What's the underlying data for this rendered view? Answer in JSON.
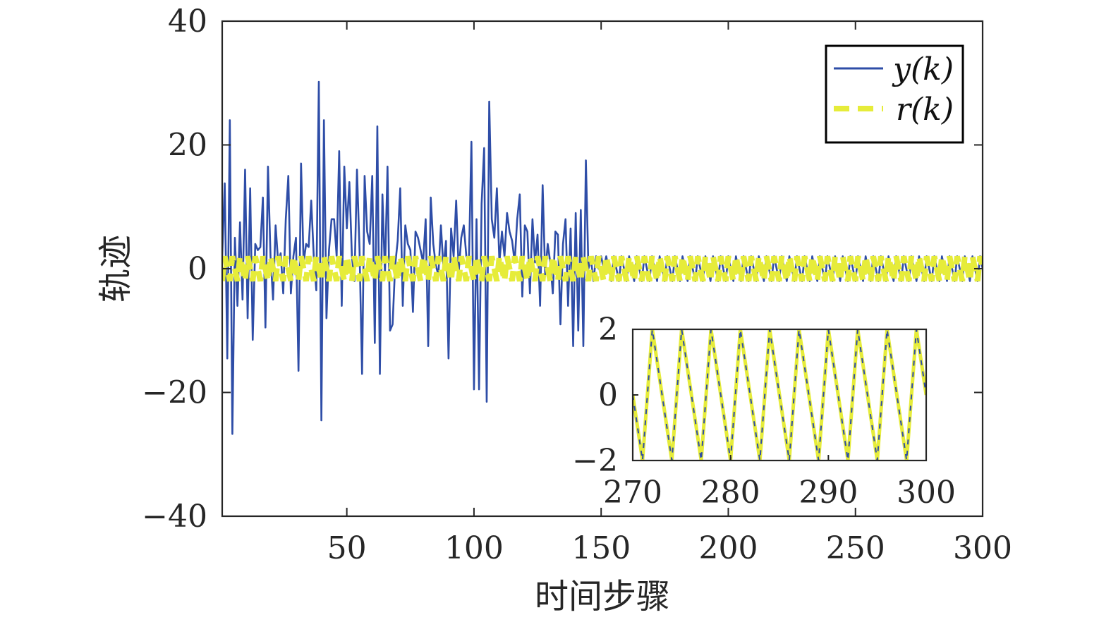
{
  "chart_data": {
    "type": "line",
    "xlabel": "时间步骤",
    "ylabel": "轨迹",
    "xlim": [
      1,
      300
    ],
    "ylim": [
      -40,
      40
    ],
    "xticks": [
      50,
      100,
      150,
      200,
      250,
      300
    ],
    "yticks": [
      -40,
      -20,
      0,
      20,
      40
    ],
    "xtick_labels": [
      "50",
      "100",
      "150",
      "200",
      "250",
      "300"
    ],
    "ytick_labels": [
      "−40",
      "−20",
      "0",
      "20",
      "40"
    ],
    "legend_placement": "top-right",
    "grid": false,
    "series": [
      {
        "name": "y(k)",
        "color": "#2E4DA7",
        "style": "solid",
        "x_start": 1,
        "values_k1_to_155": [
          2,
          13.8,
          -14.5,
          24,
          -26.7,
          5,
          -6,
          7.5,
          -5,
          16,
          -8,
          13,
          -11.5,
          4,
          3,
          3.5,
          11.5,
          -9.5,
          16.5,
          2,
          -5,
          7,
          1,
          2.5,
          -4,
          8,
          15,
          -4,
          2,
          5,
          -16.5,
          17,
          1,
          4,
          3.5,
          11,
          2,
          -3.5,
          30.2,
          -24.5,
          24,
          -8,
          3,
          8,
          8,
          2,
          19,
          -6,
          16.5,
          6.5,
          14,
          2,
          -2,
          16,
          3,
          -17,
          15,
          6,
          4,
          15,
          -12,
          23,
          -17,
          12,
          -1,
          16.5,
          -10,
          -9,
          0.5,
          4.5,
          13,
          -6,
          7,
          4,
          3,
          -7,
          6,
          5,
          3,
          1,
          8,
          -12.5,
          11.5,
          4,
          0.5,
          -1,
          7,
          0,
          4.5,
          -14.5,
          6.5,
          2,
          11,
          -0.5,
          5,
          7,
          2,
          1,
          20.5,
          -19.5,
          8,
          -19.5,
          10.5,
          19.5,
          -21.5,
          27,
          8,
          5,
          13,
          1,
          6,
          2,
          9,
          6,
          4.5,
          1,
          8,
          12,
          -4.5,
          7,
          6,
          -4,
          8,
          1,
          5.5,
          -6,
          13.5,
          -1,
          4,
          1,
          -4,
          6,
          5.5,
          -9,
          4,
          8,
          -6,
          6.5,
          -12.5,
          9,
          -10,
          9.5,
          -12.5,
          17.5,
          0,
          1.5,
          -2,
          2,
          0,
          2,
          0
        ],
        "then": "for k ≥ 156 tracks r(k)"
      },
      {
        "name": "r(k)",
        "color": "#E6EC3A",
        "style": "dashed",
        "description_values": {
          "shape": "triangle wave",
          "amplitude": 2,
          "period": 3,
          "values_per_period": [
            -2,
            2,
            0
          ]
        }
      }
    ],
    "inset": {
      "type": "line",
      "placement": "lower-right",
      "xlim": [
        270,
        300
      ],
      "ylim": [
        -2,
        2
      ],
      "xticks": [
        270,
        280,
        290,
        300
      ],
      "yticks": [
        -2,
        0,
        2
      ],
      "xtick_labels": [
        "270",
        "280",
        "290",
        "300"
      ],
      "ytick_labels": [
        "−2",
        "0",
        "2"
      ],
      "series": [
        "y(k)",
        "r(k)"
      ]
    }
  }
}
